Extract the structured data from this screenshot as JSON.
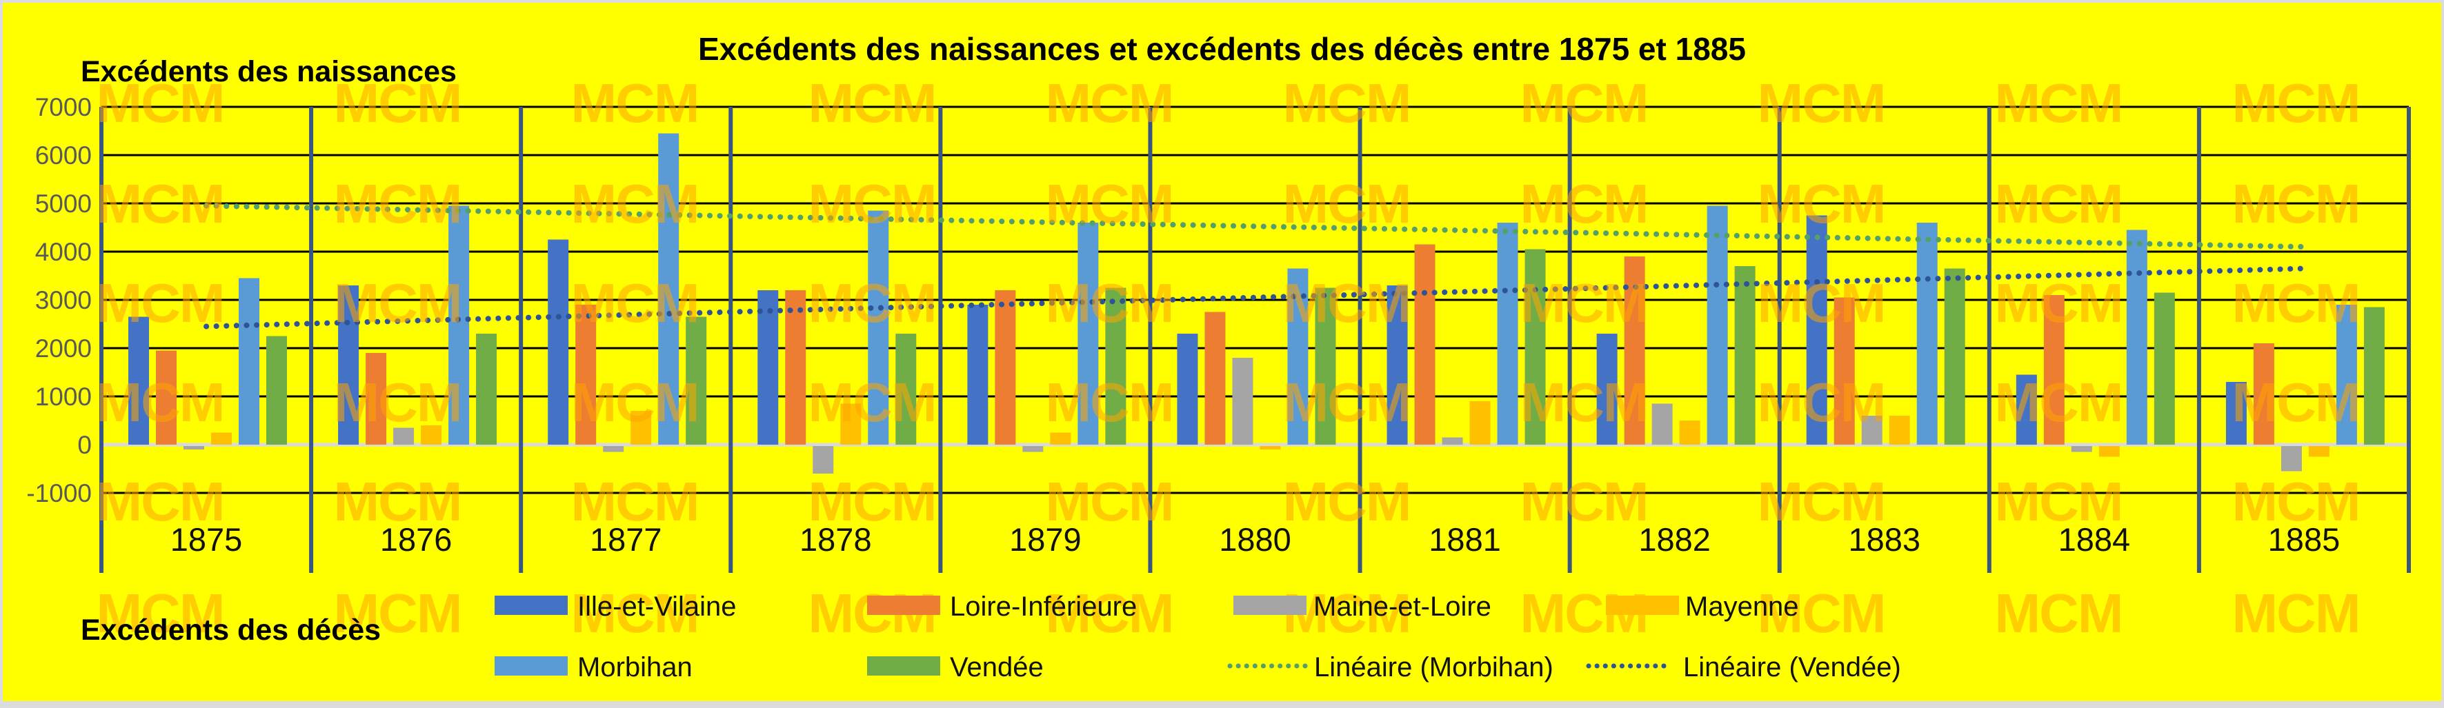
{
  "title": "Excédents des naissances et excédents des décès entre 1875 et 1885",
  "corner_labels": {
    "top_left": "Excédents des naissances",
    "bottom_left": "Excédents des décès"
  },
  "watermark": {
    "text": "MCM",
    "color": "#FFA600"
  },
  "background_color": "#FFFF00",
  "frame_color": "#DCDCDE",
  "gridline_color": "#000000",
  "zero_line_color": "#D9D9D9",
  "separator_color": "#3A5584",
  "tick_label_color": "#595959",
  "year_label_color": "#111111",
  "chart_data": {
    "type": "bar",
    "title": "Excédents des naissances et excédents des décès entre 1875 et 1885",
    "categories": [
      "1875",
      "1876",
      "1877",
      "1878",
      "1879",
      "1880",
      "1881",
      "1882",
      "1883",
      "1884",
      "1885"
    ],
    "series": [
      {
        "name": "Ille-et-Vilaine",
        "color": "#4472C4",
        "values": [
          2650,
          3300,
          4250,
          3200,
          2900,
          2300,
          3300,
          2300,
          4750,
          1450,
          1300
        ]
      },
      {
        "name": "Loire-Inférieure",
        "color": "#ED7D31",
        "values": [
          1950,
          1900,
          2900,
          3200,
          3200,
          2750,
          4150,
          3900,
          3050,
          3100,
          2100
        ]
      },
      {
        "name": "Maine-et-Loire",
        "color": "#A5A5A5",
        "values": [
          -100,
          350,
          -150,
          -600,
          -150,
          1800,
          150,
          850,
          600,
          -150,
          -550
        ]
      },
      {
        "name": "Mayenne",
        "color": "#FFC000",
        "values": [
          250,
          400,
          700,
          850,
          250,
          -100,
          900,
          500,
          600,
          -250,
          -250
        ]
      },
      {
        "name": "Morbihan",
        "color": "#5B9BD5",
        "values": [
          3450,
          4950,
          6450,
          4850,
          4600,
          3650,
          4600,
          4950,
          4600,
          4450,
          2900
        ]
      },
      {
        "name": "Vendée",
        "color": "#70AD47",
        "values": [
          2250,
          2300,
          2650,
          2300,
          3250,
          3250,
          4050,
          3700,
          3650,
          3150,
          2850
        ]
      }
    ],
    "trendlines": [
      {
        "name": "Linéaire (Morbihan)",
        "color": "#55A06A",
        "start": 4950,
        "end": 4100
      },
      {
        "name": "Linéaire (Vendée)",
        "color": "#2F5496",
        "start": 2450,
        "end": 3650
      }
    ],
    "ylim": [
      -1000,
      7000
    ],
    "ytick_step": 1000,
    "ytick_labels": [
      "7000",
      "6000",
      "5000",
      "4000",
      "3000",
      "2000",
      "1000",
      "0",
      "-1000"
    ],
    "grid": true,
    "legend_position": "bottom"
  },
  "legend": {
    "row1": [
      "Ille-et-Vilaine",
      "Loire-Inférieure",
      "Maine-et-Loire",
      "Mayenne"
    ],
    "row2_squares": [
      "Morbihan",
      "Vendée"
    ],
    "row2_lines": [
      "Linéaire (Morbihan)",
      "Linéaire (Vendée)"
    ]
  }
}
